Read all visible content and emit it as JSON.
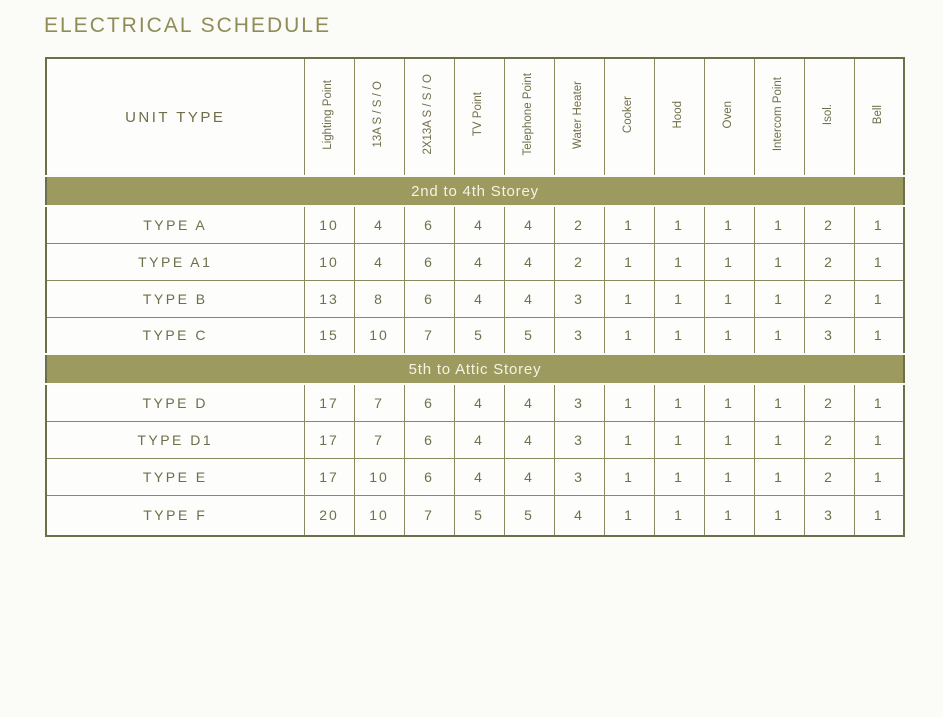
{
  "title": "ELECTRICAL SCHEDULE",
  "table": {
    "unit_type_header": "UNIT TYPE",
    "columns": [
      "Lighting Point",
      "13A S / S / O",
      "2X13A S / S / O",
      "TV Point",
      "Telephone Point",
      "Water Heater",
      "Cooker",
      "Hood",
      "Oven",
      "Intercom Point",
      "Isol.",
      "Bell"
    ],
    "sections": [
      {
        "label": "2nd to 4th Storey",
        "rows": [
          {
            "unit": "TYPE A",
            "values": [
              10,
              4,
              6,
              4,
              4,
              2,
              1,
              1,
              1,
              1,
              2,
              1
            ]
          },
          {
            "unit": "TYPE A1",
            "values": [
              10,
              4,
              6,
              4,
              4,
              2,
              1,
              1,
              1,
              1,
              2,
              1
            ]
          },
          {
            "unit": "TYPE B",
            "values": [
              13,
              8,
              6,
              4,
              4,
              3,
              1,
              1,
              1,
              1,
              2,
              1
            ]
          },
          {
            "unit": "TYPE C",
            "values": [
              15,
              10,
              7,
              5,
              5,
              3,
              1,
              1,
              1,
              1,
              3,
              1
            ]
          }
        ]
      },
      {
        "label": "5th to Attic Storey",
        "rows": [
          {
            "unit": "TYPE D",
            "values": [
              17,
              7,
              6,
              4,
              4,
              3,
              1,
              1,
              1,
              1,
              2,
              1
            ]
          },
          {
            "unit": "TYPE D1",
            "values": [
              17,
              7,
              6,
              4,
              4,
              3,
              1,
              1,
              1,
              1,
              2,
              1
            ]
          },
          {
            "unit": "TYPE E",
            "values": [
              17,
              10,
              6,
              4,
              4,
              3,
              1,
              1,
              1,
              1,
              2,
              1
            ]
          },
          {
            "unit": "TYPE F",
            "values": [
              20,
              10,
              7,
              5,
              5,
              4,
              1,
              1,
              1,
              1,
              3,
              1
            ]
          }
        ]
      }
    ]
  },
  "colors": {
    "band_background": "#9c9a5e",
    "band_text": "#f5f3e2",
    "title_text": "#8e8d57",
    "cell_text": "#70704c",
    "grid_border": "#8a8960",
    "page_background": "#fbfbf8"
  }
}
